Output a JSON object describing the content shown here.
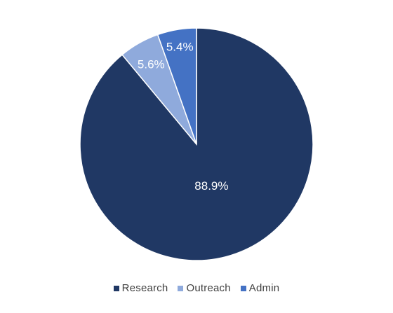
{
  "chart_data": {
    "type": "pie",
    "categories": [
      "Research",
      "Outreach",
      "Admin"
    ],
    "values": [
      88.9,
      5.6,
      5.4
    ],
    "labels": [
      "88.9%",
      "5.6%",
      "5.4%"
    ],
    "colors": [
      "#203864",
      "#8faadc",
      "#4472c4"
    ],
    "legend_position": "bottom",
    "start": "12 o'clock",
    "direction": "clockwise"
  },
  "legend": {
    "items": [
      {
        "label": "Research",
        "color": "#203864"
      },
      {
        "label": "Outreach",
        "color": "#8faadc"
      },
      {
        "label": "Admin",
        "color": "#4472c4"
      }
    ]
  }
}
